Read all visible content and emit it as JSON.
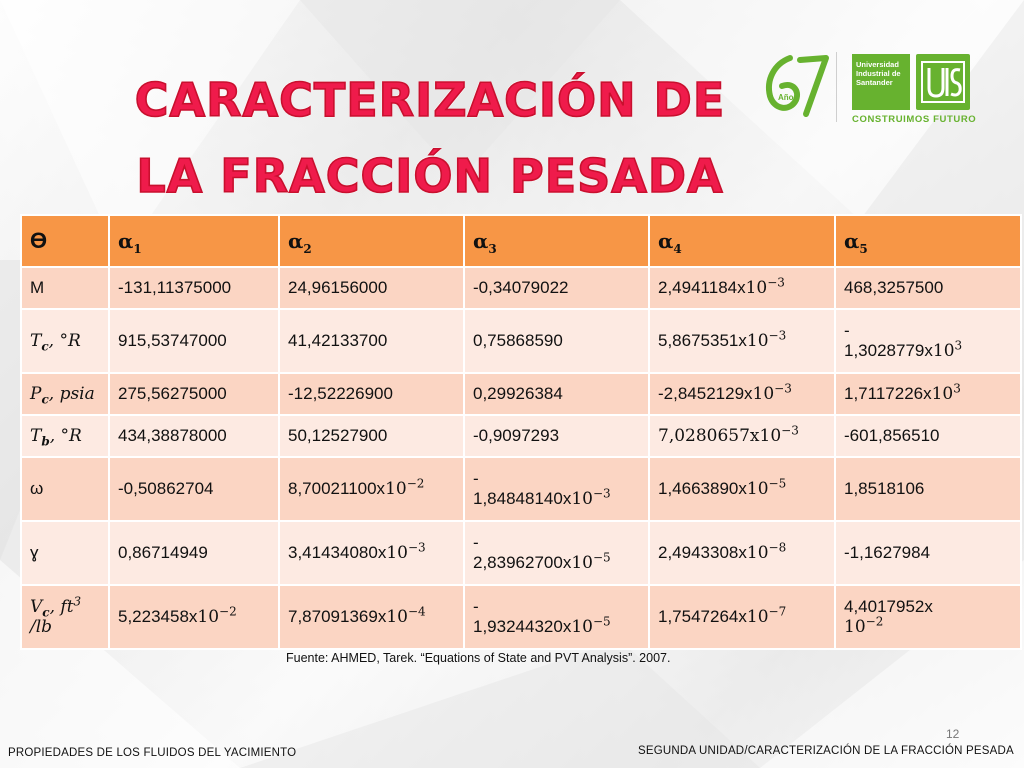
{
  "title": {
    "line1": "CARACTERIZACIÓN DE",
    "line2": "LA FRACCIÓN PESADA"
  },
  "logos": {
    "anniversary_number": "67",
    "anniversary_text": "Años",
    "university_lines": [
      "Universidad",
      "Industrial de",
      "Santander"
    ],
    "motto": "CONSTRUIMOS FUTURO",
    "brand_color": "#67b22f"
  },
  "table": {
    "headers": {
      "theta": "ϴ",
      "a1_base": "α",
      "a1_sub": "1",
      "a2_base": "α",
      "a2_sub": "2",
      "a3_base": "α",
      "a3_sub": "3",
      "a4_base": "α",
      "a4_sub": "4",
      "a5_base": "α",
      "a5_sub": "5"
    },
    "rows": {
      "r0": {
        "label": "M",
        "c1": "-131,11375000",
        "c2": "24,96156000",
        "c3": "-0,34079022",
        "c4_mant": "2,4941184x",
        "c4_exp": "10",
        "c4_pow": "−3",
        "c5": "468,3257500"
      },
      "r1": {
        "label_base": "T",
        "label_sub": "c",
        "label_unit": ", °R",
        "c1": "915,53747000",
        "c2": "41,42133700",
        "c3": "0,75868590",
        "c4_mant": "5,8675351x",
        "c4_exp": "10",
        "c4_pow": "−3",
        "c5_l1": "-",
        "c5_mant": "1,3028779x",
        "c5_exp": "10",
        "c5_pow": "3"
      },
      "r2": {
        "label_base": "P",
        "label_sub": "c",
        "label_unit": ", psia",
        "c1": "275,56275000",
        "c2": "-12,52226900",
        "c3": "0,29926384",
        "c4_mant": "-2,8452129x",
        "c4_exp": "10",
        "c4_pow": "−3",
        "c5_mant": "1,7117226x",
        "c5_exp": "10",
        "c5_pow": "3"
      },
      "r3": {
        "label_base": "T",
        "label_sub": "b",
        "label_unit": ", °R",
        "c1": "434,38878000",
        "c2": "50,12527900",
        "c3": "-0,9097293",
        "c4_mant": "7,0280657x",
        "c4_exp": "10",
        "c4_pow": "−3",
        "c5": "-601,856510"
      },
      "r4": {
        "label": "ω",
        "c1": "-0,50862704",
        "c2_mant": "8,70021100x",
        "c2_exp": "10",
        "c2_pow": "−2",
        "c3_l1": "-",
        "c3_mant": "1,84848140x",
        "c3_exp": "10",
        "c3_pow": "−3",
        "c4_mant": "1,4663890x",
        "c4_exp": "10",
        "c4_pow": "−5",
        "c5": "1,8518106"
      },
      "r5": {
        "label": "ɣ",
        "c1": "0,86714949",
        "c2_mant": "3,41434080x",
        "c2_exp": "10",
        "c2_pow": "−3",
        "c3_l1": "-",
        "c3_mant": "2,83962700x",
        "c3_exp": "10",
        "c3_pow": "−5",
        "c4_mant": "2,4943308x",
        "c4_exp": "10",
        "c4_pow": "−8",
        "c5": "-1,1627984"
      },
      "r6": {
        "label_base": "V",
        "label_sub": "c",
        "label_unit": ", ft",
        "label_pow": "3",
        "label_l2": "/lb",
        "c1_mant": "5,223458x",
        "c1_exp": "10",
        "c1_pow": "−2",
        "c2_mant": "7,87091369x",
        "c2_exp": "10",
        "c2_pow": "−4",
        "c3_l1": "-",
        "c3_mant": "1,93244320x",
        "c3_exp": "10",
        "c3_pow": "−5",
        "c4_mant": "1,7547264x",
        "c4_exp": "10",
        "c4_pow": "−7",
        "c5_mant": "4,4017952x",
        "c5_exp": "10",
        "c5_pow": "−2"
      }
    },
    "colors": {
      "header": "#f79646",
      "row_odd": "#fbd5c3",
      "row_even": "#fdeae2"
    }
  },
  "source": "Fuente: AHMED, Tarek. “Equations of State and PVT Analysis”. 2007.",
  "page_number": "12",
  "footer": {
    "left": "PROPIEDADES DE LOS FLUIDOS DEL YACIMIENTO",
    "right": "SEGUNDA UNIDAD/CARACTERIZACIÓN DE LA FRACCIÓN PESADA"
  }
}
